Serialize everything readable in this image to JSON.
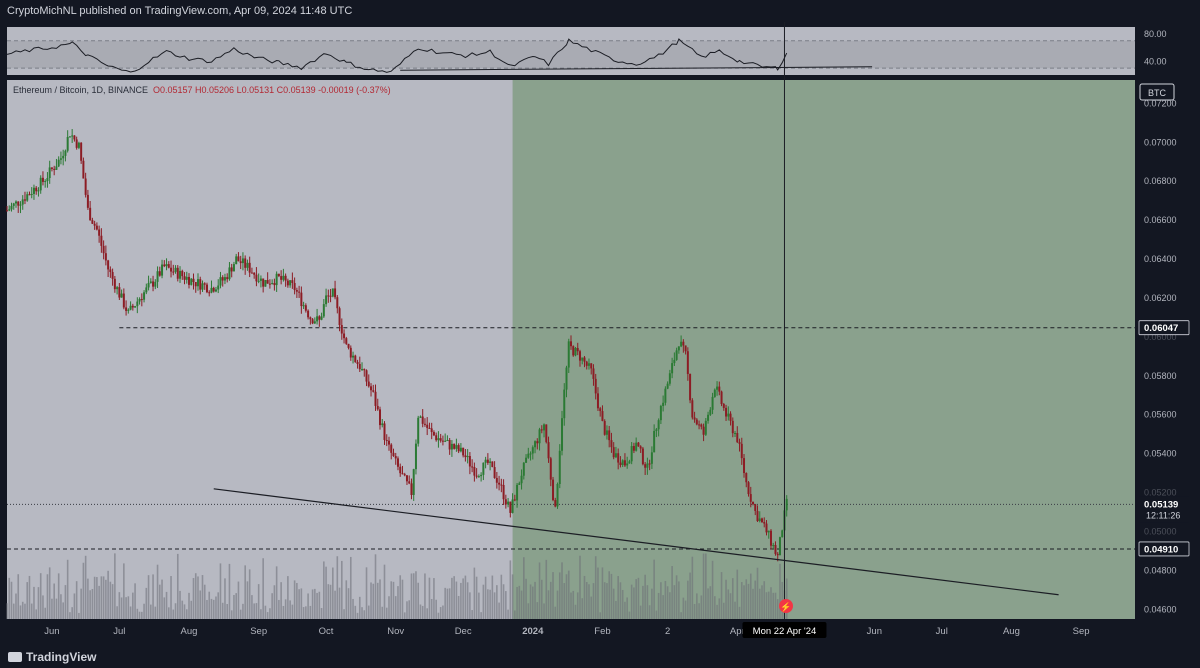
{
  "header": {
    "publisher_line": "CryptoMichNL published on TradingView.com, Apr 09, 2024 11:48 UTC"
  },
  "legend": {
    "symbol": "Ethereum / Bitcoin, 1D, BINANCE",
    "ohlc": "O0.05157 H0.05206 L0.05131 C0.05139 -0.00019 (-0.37%)"
  },
  "footer": {
    "logo_text": "TradingView"
  },
  "chart_data": [
    {
      "type": "candlestick",
      "subtype": "price",
      "currency_label": "BTC",
      "y_ticks": [
        "0.07200",
        "0.07000",
        "0.06800",
        "0.06600",
        "0.06400",
        "0.06200",
        "0.06000",
        "0.05800",
        "0.05600",
        "0.05400",
        "0.05200",
        "0.05000",
        "0.04800",
        "0.04600"
      ],
      "y_tick_values": [
        0.072,
        0.07,
        0.068,
        0.066,
        0.064,
        0.062,
        0.06,
        0.058,
        0.056,
        0.054,
        0.052,
        0.05,
        0.048,
        0.046
      ],
      "ylim": [
        0.0455,
        0.0732
      ],
      "x_ticks": [
        "Jun",
        "Jul",
        "Aug",
        "Sep",
        "Oct",
        "Nov",
        "Dec",
        "2024",
        "Feb",
        "2",
        "Apr",
        "Jun",
        "Jul",
        "Aug",
        "Sep"
      ],
      "x_tick_dates": [
        "2023-06-01",
        "2023-07-01",
        "2023-08-01",
        "2023-09-01",
        "2023-10-01",
        "2023-11-01",
        "2023-12-01",
        "2024-01-01",
        "2024-02-01",
        "2024-03-01",
        "2024-04-01",
        "2024-06-01",
        "2024-07-01",
        "2024-08-01",
        "2024-09-01"
      ],
      "xlim": [
        "2023-05-12",
        "2024-09-25"
      ],
      "price_path": [
        [
          "2023-05-12",
          0.0665
        ],
        [
          "2023-05-20",
          0.0672
        ],
        [
          "2023-05-28",
          0.068
        ],
        [
          "2023-06-05",
          0.0692
        ],
        [
          "2023-06-09",
          0.0705
        ],
        [
          "2023-06-13",
          0.0698
        ],
        [
          "2023-06-17",
          0.0665
        ],
        [
          "2023-06-21",
          0.0655
        ],
        [
          "2023-06-26",
          0.0635
        ],
        [
          "2023-07-01",
          0.0622
        ],
        [
          "2023-07-05",
          0.0612
        ],
        [
          "2023-07-10",
          0.062
        ],
        [
          "2023-07-16",
          0.0628
        ],
        [
          "2023-07-21",
          0.0636
        ],
        [
          "2023-07-28",
          0.0632
        ],
        [
          "2023-08-04",
          0.0628
        ],
        [
          "2023-08-11",
          0.0625
        ],
        [
          "2023-08-17",
          0.063
        ],
        [
          "2023-08-22",
          0.064
        ],
        [
          "2023-08-28",
          0.0635
        ],
        [
          "2023-09-03",
          0.0628
        ],
        [
          "2023-09-10",
          0.063
        ],
        [
          "2023-09-17",
          0.0625
        ],
        [
          "2023-09-24",
          0.061
        ],
        [
          "2023-09-28",
          0.0608
        ],
        [
          "2023-10-01",
          0.062
        ],
        [
          "2023-10-04",
          0.0622
        ],
        [
          "2023-10-10",
          0.0595
        ],
        [
          "2023-10-16",
          0.0585
        ],
        [
          "2023-10-22",
          0.057
        ],
        [
          "2023-10-28",
          0.0545
        ],
        [
          "2023-11-03",
          0.053
        ],
        [
          "2023-11-08",
          0.052
        ],
        [
          "2023-11-11",
          0.056
        ],
        [
          "2023-11-17",
          0.055
        ],
        [
          "2023-11-24",
          0.0545
        ],
        [
          "2023-12-01",
          0.054
        ],
        [
          "2023-12-07",
          0.053
        ],
        [
          "2023-12-12",
          0.0535
        ],
        [
          "2023-12-17",
          0.0525
        ],
        [
          "2023-12-22",
          0.051
        ],
        [
          "2023-12-27",
          0.053
        ],
        [
          "2024-01-02",
          0.0545
        ],
        [
          "2024-01-06",
          0.0555
        ],
        [
          "2024-01-11",
          0.051
        ],
        [
          "2024-01-14",
          0.056
        ],
        [
          "2024-01-17",
          0.0595
        ],
        [
          "2024-01-22",
          0.059
        ],
        [
          "2024-01-27",
          0.0582
        ],
        [
          "2024-02-01",
          0.0555
        ],
        [
          "2024-02-06",
          0.054
        ],
        [
          "2024-02-11",
          0.0535
        ],
        [
          "2024-02-16",
          0.0545
        ],
        [
          "2024-02-21",
          0.0532
        ],
        [
          "2024-02-26",
          0.056
        ],
        [
          "2024-03-02",
          0.058
        ],
        [
          "2024-03-06",
          0.0598
        ],
        [
          "2024-03-09",
          0.059
        ],
        [
          "2024-03-12",
          0.056
        ],
        [
          "2024-03-17",
          0.055
        ],
        [
          "2024-03-22",
          0.0575
        ],
        [
          "2024-03-27",
          0.056
        ],
        [
          "2024-04-01",
          0.0548
        ],
        [
          "2024-04-05",
          0.0525
        ],
        [
          "2024-04-09",
          0.051
        ],
        [
          "2024-04-14",
          0.05
        ],
        [
          "2024-04-19",
          0.0487
        ],
        [
          "2024-04-21",
          0.0502
        ],
        [
          "2024-04-23",
          0.0514
        ]
      ],
      "last_price": "0.05139",
      "countdown": "12:11:26",
      "marked_levels": [
        {
          "label": "0.06047",
          "value": 0.06047
        },
        {
          "label": "0.04910",
          "value": 0.0491
        }
      ],
      "trendline": {
        "from": [
          "2023-09-01",
          0.0519
        ],
        "to": [
          "2024-09-01",
          0.0466
        ]
      },
      "highlight_zone": {
        "from": "2023-12-23",
        "to": "2024-09-25"
      },
      "crosshair_label": "Mon 22 Apr '24",
      "crosshair_date": "2024-04-22",
      "grid": false
    },
    {
      "type": "line",
      "subtype": "rsi",
      "y_ticks": [
        "80.00",
        "40.00"
      ],
      "y_tick_values": [
        80,
        40
      ],
      "ylim": [
        20,
        90
      ],
      "band": [
        30,
        70
      ],
      "path": [
        [
          "2023-05-12",
          50
        ],
        [
          "2023-05-22",
          56
        ],
        [
          "2023-06-01",
          60
        ],
        [
          "2023-06-10",
          66
        ],
        [
          "2023-06-17",
          48
        ],
        [
          "2023-06-26",
          33
        ],
        [
          "2023-07-06",
          23
        ],
        [
          "2023-07-14",
          40
        ],
        [
          "2023-07-22",
          54
        ],
        [
          "2023-08-01",
          44
        ],
        [
          "2023-08-11",
          40
        ],
        [
          "2023-08-21",
          58
        ],
        [
          "2023-08-30",
          46
        ],
        [
          "2023-09-10",
          38
        ],
        [
          "2023-09-20",
          31
        ],
        [
          "2023-10-01",
          52
        ],
        [
          "2023-10-10",
          38
        ],
        [
          "2023-10-20",
          28
        ],
        [
          "2023-10-30",
          24
        ],
        [
          "2023-11-11",
          60
        ],
        [
          "2023-11-22",
          52
        ],
        [
          "2023-12-03",
          48
        ],
        [
          "2023-12-13",
          54
        ],
        [
          "2023-12-22",
          32
        ],
        [
          "2024-01-02",
          47
        ],
        [
          "2024-01-08",
          36
        ],
        [
          "2024-01-17",
          70
        ],
        [
          "2024-01-27",
          56
        ],
        [
          "2024-02-06",
          42
        ],
        [
          "2024-02-16",
          36
        ],
        [
          "2024-02-26",
          48
        ],
        [
          "2024-03-06",
          70
        ],
        [
          "2024-03-16",
          46
        ],
        [
          "2024-03-24",
          55
        ],
        [
          "2024-04-02",
          40
        ],
        [
          "2024-04-12",
          32
        ],
        [
          "2024-04-19",
          30
        ],
        [
          "2024-04-23",
          52
        ]
      ],
      "trendline": {
        "from": [
          "2023-11-03",
          27
        ],
        "to": [
          "2024-05-31",
          32
        ]
      }
    }
  ]
}
